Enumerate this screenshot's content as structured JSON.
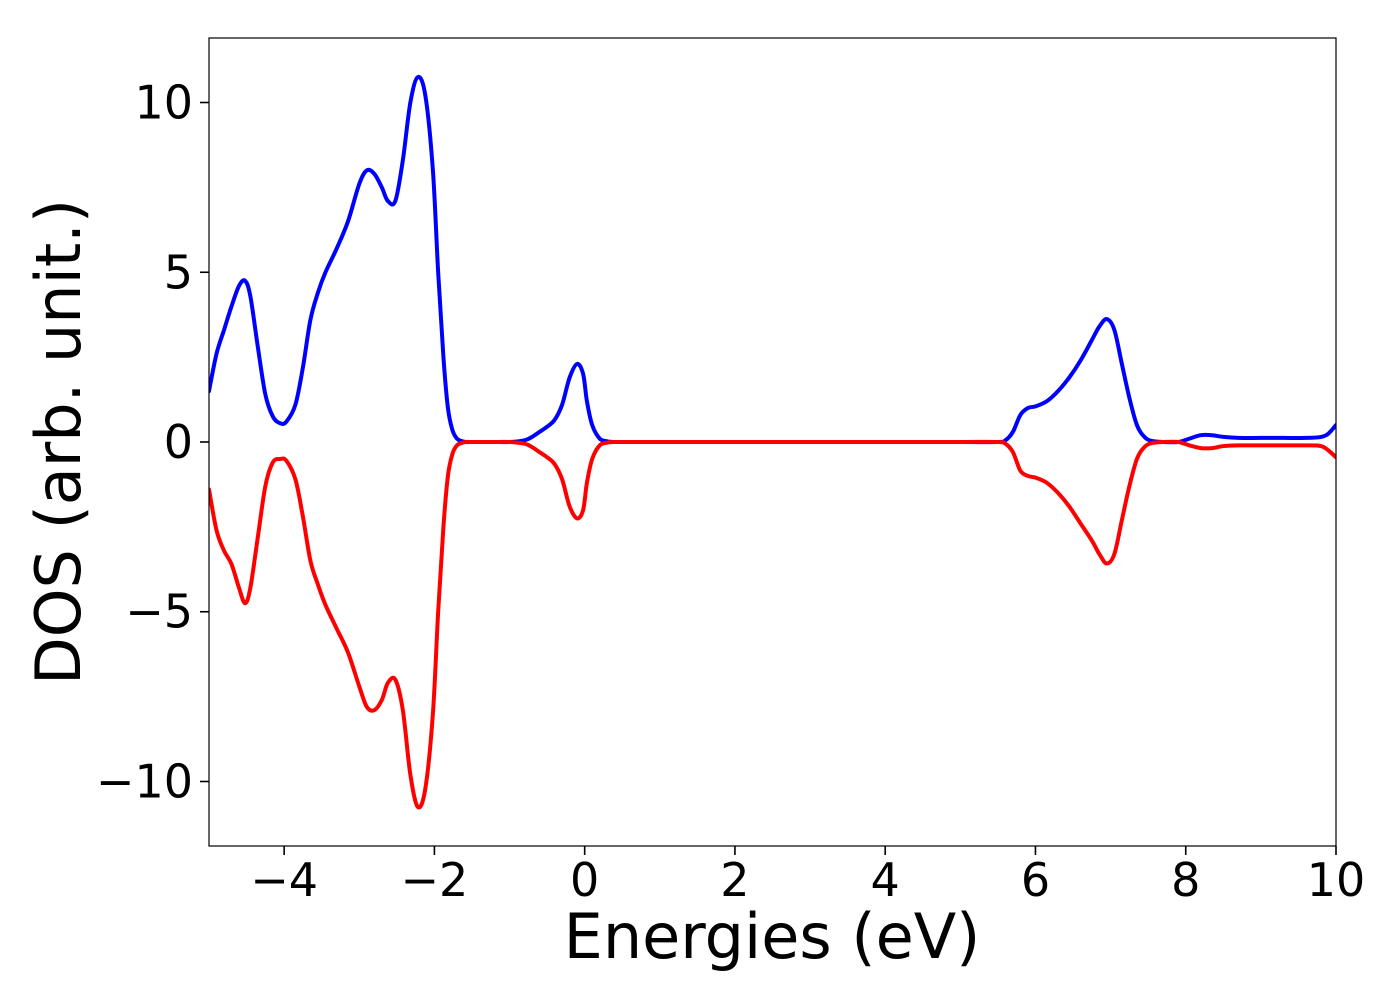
{
  "chart_data": {
    "type": "line",
    "title": "",
    "xlabel": "Energies (eV)",
    "ylabel": "DOS (arb. unit.)",
    "xlim": [
      -5,
      10
    ],
    "ylim": [
      -11.9,
      11.9
    ],
    "grid": false,
    "legend": "none",
    "x_ticks": [
      {
        "value": -4,
        "label": "−4"
      },
      {
        "value": -2,
        "label": "−2"
      },
      {
        "value": 0,
        "label": "0"
      },
      {
        "value": 2,
        "label": "2"
      },
      {
        "value": 4,
        "label": "4"
      },
      {
        "value": 6,
        "label": "6"
      },
      {
        "value": 8,
        "label": "8"
      },
      {
        "value": 10,
        "label": "10"
      }
    ],
    "y_ticks": [
      {
        "value": -10,
        "label": "−10"
      },
      {
        "value": -5,
        "label": "−5"
      },
      {
        "value": 0,
        "label": "0"
      },
      {
        "value": 5,
        "label": "5"
      },
      {
        "value": 10,
        "label": "10"
      }
    ],
    "series": [
      {
        "color": "#0000ff",
        "x": [
          -5.0,
          -4.9,
          -4.8,
          -4.7,
          -4.6,
          -4.52,
          -4.45,
          -4.35,
          -4.25,
          -4.15,
          -4.05,
          -3.97,
          -3.85,
          -3.75,
          -3.65,
          -3.55,
          -3.45,
          -3.3,
          -3.15,
          -3.0,
          -2.9,
          -2.8,
          -2.7,
          -2.62,
          -2.52,
          -2.42,
          -2.32,
          -2.22,
          -2.12,
          -2.02,
          -1.95,
          -1.88,
          -1.82,
          -1.76,
          -1.7,
          -1.64,
          -1.58,
          -1.52,
          -1.46,
          -1.38,
          -1.3,
          -1.2,
          -1.0,
          -0.8,
          -0.7,
          -0.6,
          -0.5,
          -0.4,
          -0.3,
          -0.2,
          -0.1,
          -0.02,
          0.03,
          0.1,
          0.2,
          0.3,
          0.4,
          0.5,
          1.0,
          2.0,
          3.0,
          4.0,
          5.0,
          5.5,
          5.6,
          5.7,
          5.8,
          5.9,
          6.0,
          6.15,
          6.3,
          6.45,
          6.6,
          6.75,
          6.85,
          6.95,
          7.05,
          7.15,
          7.25,
          7.35,
          7.45,
          7.55,
          7.7,
          7.9,
          8.05,
          8.2,
          8.35,
          8.5,
          8.7,
          9.0,
          9.3,
          9.6,
          9.8,
          9.9,
          10.0
        ],
        "y": [
          1.5,
          2.6,
          3.3,
          4.0,
          4.6,
          4.75,
          4.3,
          2.8,
          1.4,
          0.75,
          0.55,
          0.6,
          1.1,
          2.2,
          3.6,
          4.4,
          5.0,
          5.7,
          6.5,
          7.6,
          8.0,
          7.9,
          7.5,
          7.1,
          7.1,
          8.3,
          10.0,
          10.75,
          10.2,
          8.0,
          5.0,
          2.5,
          1.0,
          0.35,
          0.1,
          0.03,
          0.0,
          0.0,
          0.0,
          0.0,
          0.0,
          0.0,
          0.0,
          0.05,
          0.15,
          0.3,
          0.45,
          0.65,
          1.1,
          1.9,
          2.3,
          2.0,
          1.2,
          0.5,
          0.1,
          0.02,
          0.0,
          0.0,
          0.0,
          0.0,
          0.0,
          0.0,
          0.0,
          0.0,
          0.05,
          0.3,
          0.8,
          1.0,
          1.05,
          1.2,
          1.5,
          1.9,
          2.4,
          3.0,
          3.4,
          3.62,
          3.3,
          2.3,
          1.3,
          0.5,
          0.15,
          0.03,
          0.0,
          0.0,
          0.1,
          0.2,
          0.2,
          0.15,
          0.12,
          0.12,
          0.12,
          0.12,
          0.15,
          0.25,
          0.5
        ]
      },
      {
        "color": "#ff0000",
        "x": [
          -5.0,
          -4.9,
          -4.8,
          -4.7,
          -4.6,
          -4.52,
          -4.45,
          -4.35,
          -4.25,
          -4.15,
          -4.05,
          -3.97,
          -3.85,
          -3.75,
          -3.65,
          -3.55,
          -3.45,
          -3.3,
          -3.15,
          -3.0,
          -2.9,
          -2.8,
          -2.7,
          -2.62,
          -2.52,
          -2.42,
          -2.32,
          -2.22,
          -2.12,
          -2.02,
          -1.95,
          -1.88,
          -1.82,
          -1.76,
          -1.7,
          -1.64,
          -1.58,
          -1.52,
          -1.46,
          -1.38,
          -1.3,
          -1.2,
          -1.0,
          -0.8,
          -0.7,
          -0.6,
          -0.5,
          -0.4,
          -0.3,
          -0.2,
          -0.1,
          -0.02,
          0.03,
          0.1,
          0.2,
          0.3,
          0.4,
          0.5,
          1.0,
          2.0,
          3.0,
          4.0,
          5.0,
          5.5,
          5.6,
          5.7,
          5.8,
          5.9,
          6.0,
          6.15,
          6.3,
          6.45,
          6.6,
          6.75,
          6.85,
          6.95,
          7.05,
          7.15,
          7.25,
          7.35,
          7.45,
          7.55,
          7.7,
          7.9,
          8.05,
          8.2,
          8.35,
          8.5,
          8.7,
          9.0,
          9.3,
          9.6,
          9.8,
          9.9,
          10.0
        ],
        "y": [
          -1.4,
          -2.6,
          -3.2,
          -3.6,
          -4.3,
          -4.75,
          -4.3,
          -2.8,
          -1.3,
          -0.6,
          -0.5,
          -0.55,
          -1.1,
          -2.2,
          -3.5,
          -4.2,
          -4.8,
          -5.5,
          -6.2,
          -7.2,
          -7.8,
          -7.9,
          -7.6,
          -7.1,
          -7.0,
          -7.9,
          -9.8,
          -10.75,
          -10.2,
          -8.0,
          -5.0,
          -2.5,
          -1.0,
          -0.35,
          -0.1,
          -0.03,
          0.0,
          0.0,
          0.0,
          0.0,
          0.0,
          0.0,
          0.0,
          -0.05,
          -0.15,
          -0.3,
          -0.45,
          -0.65,
          -1.1,
          -1.9,
          -2.25,
          -2.0,
          -1.2,
          -0.5,
          -0.1,
          -0.02,
          0.0,
          0.0,
          0.0,
          0.0,
          0.0,
          0.0,
          0.0,
          0.0,
          -0.05,
          -0.3,
          -0.85,
          -1.0,
          -1.05,
          -1.2,
          -1.5,
          -1.9,
          -2.4,
          -2.9,
          -3.3,
          -3.58,
          -3.3,
          -2.3,
          -1.3,
          -0.5,
          -0.15,
          -0.03,
          0.0,
          0.0,
          -0.1,
          -0.18,
          -0.18,
          -0.12,
          -0.1,
          -0.1,
          -0.1,
          -0.1,
          -0.12,
          -0.25,
          -0.45
        ]
      }
    ]
  }
}
